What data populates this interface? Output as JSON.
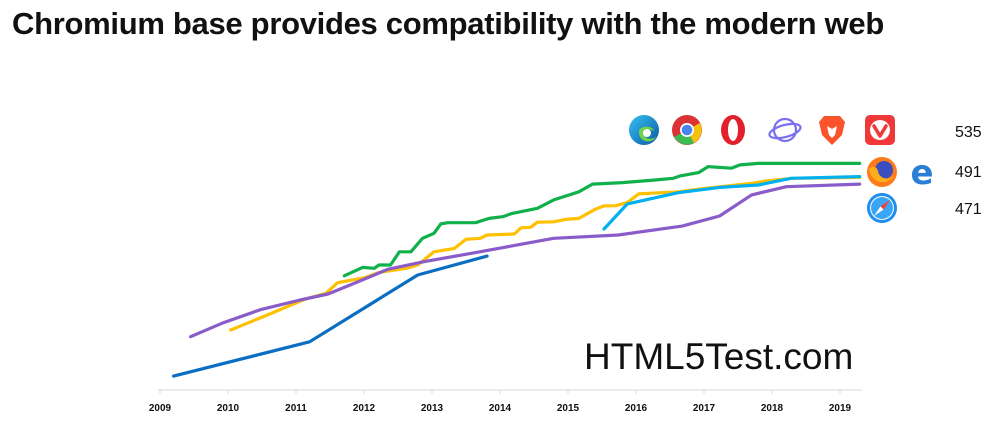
{
  "title": "Chromium base provides compatibility with the modern web",
  "watermark": "HTML5Test.com",
  "legend_groups": [
    {
      "score": "535",
      "icons": [
        "edge-chromium-icon",
        "chrome-icon",
        "opera-icon",
        "samsung-internet-icon",
        "brave-icon",
        "vivaldi-icon"
      ]
    },
    {
      "score": "491",
      "icons": [
        "firefox-icon",
        "edge-legacy-icon"
      ]
    },
    {
      "score": "471",
      "icons": [
        "safari-icon"
      ]
    }
  ],
  "chart_data": {
    "type": "line",
    "title": "Chromium base provides compatibility with the modern web",
    "xlabel": "",
    "ylabel": "",
    "xlim": [
      2009,
      2019.35
    ],
    "ylim": [
      0,
      100
    ],
    "y_units": "relative score (unlabeled axis)",
    "x_ticks": [
      "2009",
      "2010",
      "2011",
      "2012",
      "2013",
      "2014",
      "2015",
      "2016",
      "2017",
      "2018",
      "2019"
    ],
    "grid": false,
    "series": [
      {
        "name": "Chromium-based browsers",
        "end_label": "535",
        "color": "#10b04a",
        "points": [
          [
            2011.71,
            47.6
          ],
          [
            2011.98,
            51.1
          ],
          [
            2012.15,
            50.7
          ],
          [
            2012.22,
            52.1
          ],
          [
            2012.39,
            52.1
          ],
          [
            2012.52,
            57.6
          ],
          [
            2012.69,
            57.6
          ],
          [
            2012.86,
            63.2
          ],
          [
            2013.03,
            65.3
          ],
          [
            2013.13,
            69.2
          ],
          [
            2013.23,
            69.7
          ],
          [
            2013.64,
            69.7
          ],
          [
            2013.84,
            71.5
          ],
          [
            2014.04,
            72.2
          ],
          [
            2014.18,
            73.6
          ],
          [
            2014.55,
            75.7
          ],
          [
            2014.79,
            79.2
          ],
          [
            2015.16,
            82.6
          ],
          [
            2015.36,
            85.8
          ],
          [
            2015.8,
            86.4
          ],
          [
            2016.28,
            87.5
          ],
          [
            2016.55,
            88.2
          ],
          [
            2016.65,
            89.2
          ],
          [
            2016.92,
            90.6
          ],
          [
            2017.06,
            93.1
          ],
          [
            2017.4,
            92.4
          ],
          [
            2017.53,
            93.8
          ],
          [
            2017.8,
            94.4
          ],
          [
            2019.29,
            94.4
          ]
        ]
      },
      {
        "name": "Firefox",
        "end_label": "491",
        "color": "#ffc000",
        "points": [
          [
            2010.04,
            25.0
          ],
          [
            2010.52,
            30.6
          ],
          [
            2011.13,
            37.8
          ],
          [
            2011.44,
            40.3
          ],
          [
            2011.61,
            44.7
          ],
          [
            2012.01,
            46.8
          ],
          [
            2012.22,
            49.0
          ],
          [
            2012.62,
            50.7
          ],
          [
            2012.79,
            52.1
          ],
          [
            2013.03,
            57.6
          ],
          [
            2013.33,
            59.0
          ],
          [
            2013.5,
            62.8
          ],
          [
            2013.71,
            63.2
          ],
          [
            2013.81,
            64.6
          ],
          [
            2014.21,
            65.0
          ],
          [
            2014.31,
            67.6
          ],
          [
            2014.45,
            67.8
          ],
          [
            2014.55,
            69.9
          ],
          [
            2014.79,
            70.1
          ],
          [
            2014.96,
            71.1
          ],
          [
            2015.16,
            71.5
          ],
          [
            2015.4,
            75.3
          ],
          [
            2015.53,
            76.7
          ],
          [
            2015.7,
            76.8
          ],
          [
            2015.87,
            78.1
          ],
          [
            2016.04,
            81.7
          ],
          [
            2016.62,
            82.6
          ],
          [
            2017.02,
            84.0
          ],
          [
            2017.7,
            86.1
          ],
          [
            2017.94,
            87.2
          ],
          [
            2018.31,
            88.2
          ],
          [
            2019.29,
            88.6
          ]
        ]
      },
      {
        "name": "Edge (legacy)",
        "end_label": "491",
        "color": "#00b0f0",
        "points": [
          [
            2015.53,
            67.1
          ],
          [
            2015.87,
            77.5
          ],
          [
            2016.62,
            82.2
          ],
          [
            2017.23,
            84.4
          ],
          [
            2017.8,
            85.4
          ],
          [
            2018.28,
            88.2
          ],
          [
            2019.29,
            88.9
          ]
        ]
      },
      {
        "name": "Safari",
        "end_label": "471",
        "color": "#8a5cc9",
        "points": [
          [
            2009.45,
            22.2
          ],
          [
            2009.91,
            27.8
          ],
          [
            2010.49,
            33.6
          ],
          [
            2011.06,
            37.5
          ],
          [
            2011.47,
            40.0
          ],
          [
            2011.88,
            44.7
          ],
          [
            2012.35,
            50.3
          ],
          [
            2012.89,
            53.5
          ],
          [
            2013.57,
            56.9
          ],
          [
            2014.79,
            63.2
          ],
          [
            2015.74,
            64.6
          ],
          [
            2016.68,
            68.3
          ],
          [
            2017.23,
            72.5
          ],
          [
            2017.7,
            81.3
          ],
          [
            2018.21,
            84.7
          ],
          [
            2019.29,
            85.8
          ]
        ]
      },
      {
        "name": "Internet Explorer",
        "color": "#0a6fc2",
        "points": [
          [
            2009.2,
            5.8
          ],
          [
            2011.2,
            20.1
          ],
          [
            2012.79,
            47.9
          ],
          [
            2013.81,
            55.8
          ]
        ]
      }
    ]
  }
}
